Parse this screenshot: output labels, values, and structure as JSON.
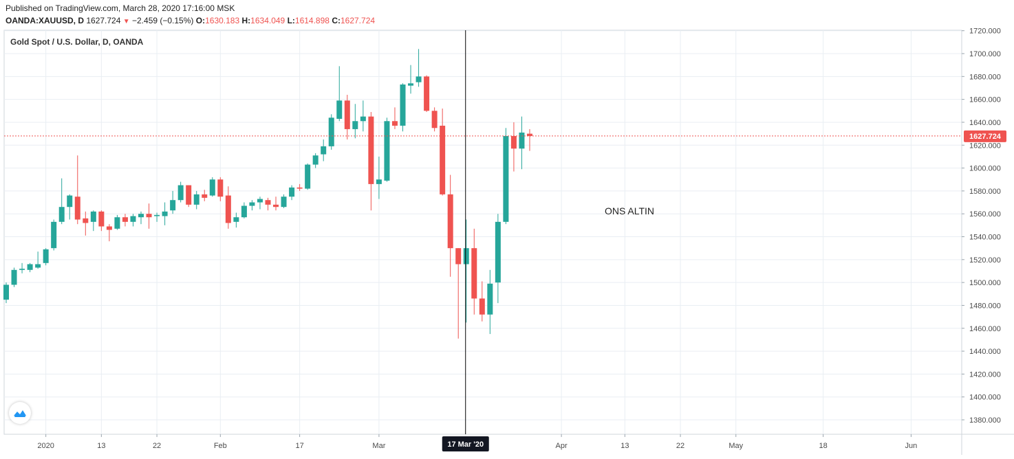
{
  "header": {
    "published": "Published on TradingView.com, March 28, 2020 17:16:00 MSK",
    "symbol": "OANDA:XAUUSD, D",
    "last": "1627.724",
    "change": "−2.459 (−0.15%)",
    "open_label": "O:",
    "open": "1630.183",
    "high_label": "H:",
    "high": "1634.049",
    "low_label": "L:",
    "low": "1614.898",
    "close_label": "C:",
    "close": "1627.724"
  },
  "legend_title": "Gold Spot / U.S. Dollar, D, OANDA",
  "colors": {
    "up": "#26a69a",
    "down": "#ef5350",
    "grid": "#e9eef3",
    "axis_text": "#4a4a4a",
    "price_line": "#ef5350",
    "crosshair": "#000000"
  },
  "chart_data": {
    "type": "candlestick",
    "title": "Gold Spot / U.S. Dollar, D, OANDA",
    "annotation": "ONS ALTIN",
    "last_price_label": "1627.724",
    "crosshair_label": "17 Mar '20",
    "ylim": [
      1365,
      1720
    ],
    "y_ticks": [
      1720,
      1700,
      1680,
      1660,
      1640,
      1620,
      1600,
      1580,
      1560,
      1540,
      1520,
      1500,
      1480,
      1460,
      1440,
      1420,
      1400,
      1380
    ],
    "x_ticks": [
      {
        "label": "2020",
        "idx": 5
      },
      {
        "label": "13",
        "idx": 12
      },
      {
        "label": "22",
        "idx": 19
      },
      {
        "label": "Feb",
        "idx": 27
      },
      {
        "label": "17",
        "idx": 37
      },
      {
        "label": "Mar",
        "idx": 47
      },
      {
        "label": "Apr",
        "idx": 70
      },
      {
        "label": "13",
        "idx": 78
      },
      {
        "label": "22",
        "idx": 85
      },
      {
        "label": "May",
        "idx": 92
      },
      {
        "label": "18",
        "idx": 103
      },
      {
        "label": "Jun",
        "idx": 114
      }
    ],
    "grid": true,
    "crosshair_index": 58,
    "candles": [
      {
        "o": 1485,
        "h": 1500,
        "l": 1482,
        "c": 1498
      },
      {
        "o": 1498,
        "h": 1513,
        "l": 1496,
        "c": 1511
      },
      {
        "o": 1511,
        "h": 1517,
        "l": 1508,
        "c": 1512
      },
      {
        "o": 1511,
        "h": 1517,
        "l": 1509,
        "c": 1516
      },
      {
        "o": 1513,
        "h": 1527,
        "l": 1512,
        "c": 1516
      },
      {
        "o": 1517,
        "h": 1530,
        "l": 1515,
        "c": 1529
      },
      {
        "o": 1530,
        "h": 1555,
        "l": 1528,
        "c": 1553
      },
      {
        "o": 1553,
        "h": 1591,
        "l": 1551,
        "c": 1566
      },
      {
        "o": 1566,
        "h": 1577,
        "l": 1555,
        "c": 1576
      },
      {
        "o": 1575,
        "h": 1611,
        "l": 1551,
        "c": 1555
      },
      {
        "o": 1556,
        "h": 1562,
        "l": 1541,
        "c": 1552
      },
      {
        "o": 1553,
        "h": 1563,
        "l": 1545,
        "c": 1562
      },
      {
        "o": 1562,
        "h": 1563,
        "l": 1545,
        "c": 1549
      },
      {
        "o": 1549,
        "h": 1551,
        "l": 1536,
        "c": 1546
      },
      {
        "o": 1547,
        "h": 1559,
        "l": 1546,
        "c": 1557
      },
      {
        "o": 1557,
        "h": 1560,
        "l": 1549,
        "c": 1553
      },
      {
        "o": 1553,
        "h": 1560,
        "l": 1549,
        "c": 1558
      },
      {
        "o": 1557,
        "h": 1562,
        "l": 1551,
        "c": 1560
      },
      {
        "o": 1560,
        "h": 1569,
        "l": 1547,
        "c": 1557
      },
      {
        "o": 1558,
        "h": 1561,
        "l": 1553,
        "c": 1559
      },
      {
        "o": 1558,
        "h": 1570,
        "l": 1550,
        "c": 1562
      },
      {
        "o": 1563,
        "h": 1580,
        "l": 1560,
        "c": 1572
      },
      {
        "o": 1572,
        "h": 1588,
        "l": 1570,
        "c": 1585
      },
      {
        "o": 1585,
        "h": 1585,
        "l": 1566,
        "c": 1568
      },
      {
        "o": 1568,
        "h": 1580,
        "l": 1564,
        "c": 1577
      },
      {
        "o": 1577,
        "h": 1581,
        "l": 1571,
        "c": 1574
      },
      {
        "o": 1576,
        "h": 1592,
        "l": 1575,
        "c": 1590
      },
      {
        "o": 1590,
        "h": 1592,
        "l": 1571,
        "c": 1575
      },
      {
        "o": 1576,
        "h": 1584,
        "l": 1547,
        "c": 1552
      },
      {
        "o": 1553,
        "h": 1561,
        "l": 1548,
        "c": 1557
      },
      {
        "o": 1557,
        "h": 1570,
        "l": 1556,
        "c": 1567
      },
      {
        "o": 1567,
        "h": 1572,
        "l": 1563,
        "c": 1570
      },
      {
        "o": 1570,
        "h": 1575,
        "l": 1564,
        "c": 1573
      },
      {
        "o": 1572,
        "h": 1574,
        "l": 1563,
        "c": 1568
      },
      {
        "o": 1568,
        "h": 1575,
        "l": 1563,
        "c": 1566
      },
      {
        "o": 1566,
        "h": 1577,
        "l": 1565,
        "c": 1575
      },
      {
        "o": 1575,
        "h": 1585,
        "l": 1572,
        "c": 1583
      },
      {
        "o": 1583,
        "h": 1586,
        "l": 1580,
        "c": 1582
      },
      {
        "o": 1582,
        "h": 1604,
        "l": 1581,
        "c": 1603
      },
      {
        "o": 1603,
        "h": 1613,
        "l": 1600,
        "c": 1611
      },
      {
        "o": 1612,
        "h": 1625,
        "l": 1606,
        "c": 1619
      },
      {
        "o": 1619,
        "h": 1647,
        "l": 1616,
        "c": 1644
      },
      {
        "o": 1643,
        "h": 1689,
        "l": 1641,
        "c": 1659
      },
      {
        "o": 1659,
        "h": 1664,
        "l": 1625,
        "c": 1634
      },
      {
        "o": 1634,
        "h": 1656,
        "l": 1626,
        "c": 1641
      },
      {
        "o": 1641,
        "h": 1659,
        "l": 1632,
        "c": 1645
      },
      {
        "o": 1645,
        "h": 1649,
        "l": 1563,
        "c": 1586
      },
      {
        "o": 1586,
        "h": 1610,
        "l": 1573,
        "c": 1590
      },
      {
        "o": 1589,
        "h": 1644,
        "l": 1588,
        "c": 1641
      },
      {
        "o": 1641,
        "h": 1653,
        "l": 1634,
        "c": 1637
      },
      {
        "o": 1637,
        "h": 1674,
        "l": 1632,
        "c": 1673
      },
      {
        "o": 1672,
        "h": 1690,
        "l": 1665,
        "c": 1674
      },
      {
        "o": 1675,
        "h": 1704,
        "l": 1671,
        "c": 1680
      },
      {
        "o": 1680,
        "h": 1681,
        "l": 1649,
        "c": 1650
      },
      {
        "o": 1650,
        "h": 1653,
        "l": 1632,
        "c": 1635
      },
      {
        "o": 1637,
        "h": 1652,
        "l": 1576,
        "c": 1577
      },
      {
        "o": 1577,
        "h": 1594,
        "l": 1505,
        "c": 1530
      },
      {
        "o": 1530,
        "h": 1530,
        "l": 1451,
        "c": 1516
      },
      {
        "o": 1516,
        "h": 1555,
        "l": 1465,
        "c": 1530
      },
      {
        "o": 1530,
        "h": 1547,
        "l": 1472,
        "c": 1486
      },
      {
        "o": 1486,
        "h": 1501,
        "l": 1466,
        "c": 1472
      },
      {
        "o": 1472,
        "h": 1511,
        "l": 1455,
        "c": 1499
      },
      {
        "o": 1500,
        "h": 1560,
        "l": 1482,
        "c": 1553
      },
      {
        "o": 1553,
        "h": 1635,
        "l": 1551,
        "c": 1628
      },
      {
        "o": 1628,
        "h": 1640,
        "l": 1597,
        "c": 1617
      },
      {
        "o": 1617,
        "h": 1645,
        "l": 1599,
        "c": 1631
      },
      {
        "o": 1630,
        "h": 1634,
        "l": 1615,
        "c": 1628
      }
    ]
  }
}
